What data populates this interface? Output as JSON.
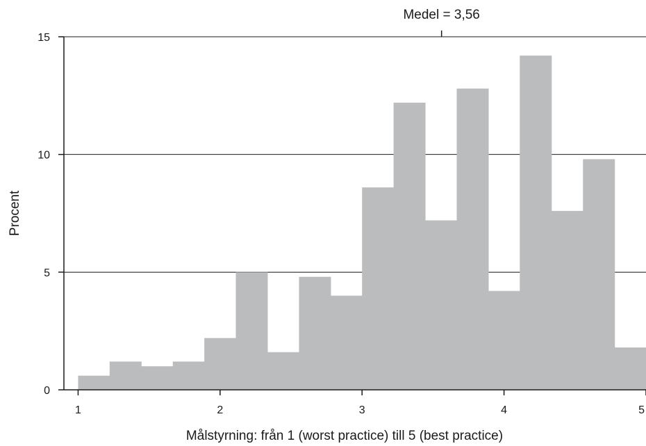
{
  "chart_data": {
    "type": "bar",
    "subtype": "histogram",
    "xlabel": "Målstyrning: från 1 (worst practice) till 5 (best practice)",
    "ylabel": "Procent",
    "xlim": [
      0.9,
      5.0
    ],
    "ylim": [
      0,
      15
    ],
    "x_ticks": [
      {
        "value": 1,
        "label": "1"
      },
      {
        "value": 2,
        "label": "2"
      },
      {
        "value": 3,
        "label": "3"
      },
      {
        "value": 4,
        "label": "4"
      },
      {
        "value": 5,
        "label": "5"
      }
    ],
    "y_ticks": [
      {
        "value": 0,
        "label": "0"
      },
      {
        "value": 5,
        "label": "5"
      },
      {
        "value": 10,
        "label": "10"
      },
      {
        "value": 15,
        "label": "15"
      }
    ],
    "grid": "horizontal",
    "bin_width": 0.222,
    "bins": [
      {
        "start": 1.0,
        "value": 0.6
      },
      {
        "start": 1.222,
        "value": 1.2
      },
      {
        "start": 1.444,
        "value": 1.0
      },
      {
        "start": 1.667,
        "value": 1.2
      },
      {
        "start": 1.889,
        "value": 2.2
      },
      {
        "start": 2.111,
        "value": 5.0
      },
      {
        "start": 2.333,
        "value": 1.6
      },
      {
        "start": 2.556,
        "value": 4.8
      },
      {
        "start": 2.778,
        "value": 4.0
      },
      {
        "start": 3.0,
        "value": 8.6
      },
      {
        "start": 3.222,
        "value": 12.2
      },
      {
        "start": 3.444,
        "value": 7.2
      },
      {
        "start": 3.667,
        "value": 12.8
      },
      {
        "start": 3.889,
        "value": 4.2
      },
      {
        "start": 4.111,
        "value": 14.2
      },
      {
        "start": 4.333,
        "value": 7.6
      },
      {
        "start": 4.556,
        "value": 9.8
      },
      {
        "start": 4.778,
        "value": 1.8
      }
    ],
    "bar_color": "#bbbcbe",
    "annotation": {
      "text": "Medel = 3,56",
      "x": 3.56
    }
  }
}
